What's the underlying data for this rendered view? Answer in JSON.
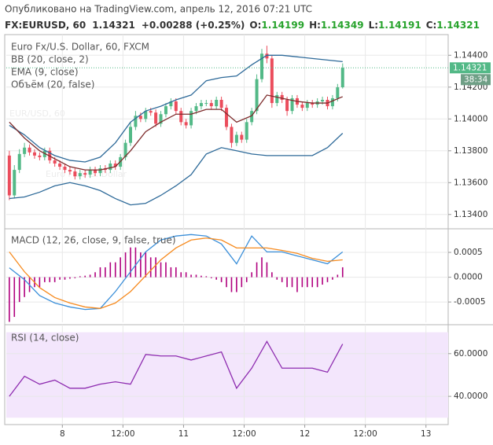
{
  "header": {
    "published": "Опубликовано на TradingView.com, апрель 12, 2016 07:21 UTC",
    "symbol": "FX:EURUSD, 60",
    "last": "1.14321",
    "change": "+0.00288 (+0.25%)",
    "open_label": "O:",
    "open": "1.14199",
    "high_label": "H:",
    "high": "1.14349",
    "low_label": "L:",
    "low": "1.14191",
    "close_label": "C:",
    "close": "1.14321"
  },
  "chart_data": [
    {
      "type": "candlestick",
      "title": "Euro Fx/U.S. Dollar, 60, FXCM",
      "watermark": {
        "symbol": "EUR/USD, 60",
        "description": "Euro Fx/U.S. Dollar"
      },
      "volume_label": "Объём (20, false)",
      "ylim": [
        1.13315,
        1.1452
      ],
      "yticks": [
        {
          "value": 1.134,
          "label": "1.13400"
        },
        {
          "value": 1.136,
          "label": "1.13600"
        },
        {
          "value": 1.138,
          "label": "1.13800"
        },
        {
          "value": 1.14,
          "label": "1.14000"
        },
        {
          "value": 1.142,
          "label": "1.14200"
        },
        {
          "value": 1.144,
          "label": "1.14400"
        }
      ],
      "last_price": 1.14321,
      "last_price_color": "#53b987",
      "countdown": "38:34",
      "series": [
        {
          "type": "candlestick",
          "up_color": "#53b987",
          "down_color": "#eb4d5c",
          "x": [
            0,
            1,
            2,
            3,
            4,
            5,
            6,
            7,
            8,
            9,
            10,
            11,
            12,
            13,
            14,
            15,
            16,
            17,
            18,
            19,
            20,
            21,
            22,
            23,
            24,
            25,
            26,
            27,
            28,
            29,
            30,
            31,
            32,
            33,
            34,
            35,
            36,
            37,
            38,
            39,
            40,
            41,
            42,
            43,
            44,
            45,
            46,
            47,
            48,
            49,
            50,
            51,
            52,
            53,
            54,
            55,
            56,
            57,
            58,
            59,
            60,
            61,
            62,
            63,
            64,
            65,
            66
          ],
          "open": [
            1.1377,
            1.1352,
            1.1368,
            1.1378,
            1.1382,
            1.1379,
            1.1377,
            1.1376,
            1.138,
            1.1374,
            1.1372,
            1.137,
            1.1368,
            1.1367,
            1.1364,
            1.1366,
            1.1365,
            1.1368,
            1.1366,
            1.1369,
            1.1368,
            1.1372,
            1.137,
            1.1376,
            1.1385,
            1.1395,
            1.1402,
            1.14,
            1.1405,
            1.1404,
            1.1397,
            1.1403,
            1.1408,
            1.1411,
            1.1405,
            1.1398,
            1.1396,
            1.1405,
            1.1408,
            1.141,
            1.141,
            1.1408,
            1.1412,
            1.1407,
            1.1395,
            1.1385,
            1.139,
            1.1387,
            1.1398,
            1.1405,
            1.1425,
            1.1441,
            1.1438,
            1.141,
            1.1415,
            1.1412,
            1.1405,
            1.1413,
            1.1409,
            1.1407,
            1.141,
            1.1409,
            1.1411,
            1.1412,
            1.1408,
            1.1413,
            1.14199
          ],
          "high": [
            1.138,
            1.1371,
            1.1381,
            1.1385,
            1.1384,
            1.1381,
            1.1379,
            1.1382,
            1.1382,
            1.1376,
            1.1374,
            1.1372,
            1.137,
            1.1369,
            1.1368,
            1.1368,
            1.137,
            1.137,
            1.1371,
            1.1371,
            1.1374,
            1.1374,
            1.1378,
            1.1387,
            1.1398,
            1.1405,
            1.1404,
            1.1407,
            1.1407,
            1.1406,
            1.1405,
            1.141,
            1.1413,
            1.1413,
            1.1407,
            1.14,
            1.1407,
            1.141,
            1.1412,
            1.1412,
            1.1412,
            1.1414,
            1.1414,
            1.1409,
            1.1397,
            1.1392,
            1.1392,
            1.14,
            1.1407,
            1.1428,
            1.1444,
            1.1446,
            1.144,
            1.1417,
            1.1417,
            1.1414,
            1.1415,
            1.1415,
            1.1411,
            1.1412,
            1.1412,
            1.1413,
            1.1414,
            1.1414,
            1.1415,
            1.1422,
            1.14349
          ],
          "low": [
            1.1349,
            1.135,
            1.1366,
            1.1376,
            1.1377,
            1.1375,
            1.1374,
            1.1374,
            1.1372,
            1.137,
            1.1368,
            1.1366,
            1.1365,
            1.1362,
            1.1362,
            1.1363,
            1.1363,
            1.1364,
            1.1364,
            1.1366,
            1.1366,
            1.1368,
            1.1368,
            1.1374,
            1.1383,
            1.1393,
            1.1398,
            1.1398,
            1.1402,
            1.1395,
            1.1395,
            1.1401,
            1.1406,
            1.1403,
            1.1396,
            1.1394,
            1.1394,
            1.1403,
            1.1406,
            1.1408,
            1.1406,
            1.1406,
            1.1405,
            1.1393,
            1.1382,
            1.1383,
            1.1385,
            1.1385,
            1.1396,
            1.1403,
            1.1423,
            1.1435,
            1.1407,
            1.1408,
            1.141,
            1.1402,
            1.1403,
            1.1407,
            1.1405,
            1.1405,
            1.1407,
            1.1407,
            1.1409,
            1.1406,
            1.1406,
            1.1411,
            1.14191
          ],
          "close": [
            1.1352,
            1.1368,
            1.1378,
            1.1382,
            1.1379,
            1.1377,
            1.1376,
            1.138,
            1.1374,
            1.1372,
            1.137,
            1.1368,
            1.1367,
            1.1364,
            1.1366,
            1.1365,
            1.1368,
            1.1366,
            1.1369,
            1.1368,
            1.1372,
            1.137,
            1.1376,
            1.1385,
            1.1395,
            1.1402,
            1.14,
            1.1405,
            1.1404,
            1.1397,
            1.1403,
            1.1408,
            1.1411,
            1.1405,
            1.1398,
            1.1396,
            1.1405,
            1.1408,
            1.141,
            1.141,
            1.1408,
            1.1412,
            1.1407,
            1.1395,
            1.1385,
            1.139,
            1.1387,
            1.1398,
            1.1405,
            1.1425,
            1.1441,
            1.1438,
            1.141,
            1.1415,
            1.1412,
            1.1405,
            1.1413,
            1.1409,
            1.1407,
            1.141,
            1.1409,
            1.1411,
            1.1412,
            1.1408,
            1.1413,
            1.14199,
            1.14321
          ]
        },
        {
          "type": "band",
          "name": "BB (20, close, 2)",
          "color": "#2e6a99",
          "x": [
            0,
            3,
            6,
            9,
            12,
            15,
            18,
            21,
            24,
            27,
            30,
            33,
            36,
            39,
            42,
            45,
            48,
            51,
            54,
            57,
            60,
            63,
            66
          ],
          "upper": [
            1.1396,
            1.139,
            1.1382,
            1.1377,
            1.1374,
            1.1373,
            1.1376,
            1.1385,
            1.1398,
            1.1405,
            1.1408,
            1.1412,
            1.1415,
            1.1424,
            1.1426,
            1.1427,
            1.1434,
            1.144,
            1.144,
            1.1439,
            1.1438,
            1.1437,
            1.1436
          ],
          "lower": [
            1.135,
            1.1351,
            1.1354,
            1.1358,
            1.136,
            1.1358,
            1.1355,
            1.135,
            1.1346,
            1.1347,
            1.1352,
            1.1358,
            1.1365,
            1.1378,
            1.1382,
            1.138,
            1.1378,
            1.1377,
            1.1377,
            1.1377,
            1.1377,
            1.1382,
            1.1391
          ]
        },
        {
          "type": "line",
          "name": "EMA (9, close)",
          "color": "#7d2b2b",
          "x": [
            0,
            3,
            6,
            9,
            12,
            15,
            18,
            21,
            24,
            27,
            30,
            33,
            36,
            39,
            42,
            45,
            48,
            51,
            54,
            57,
            60,
            63,
            66
          ],
          "values": [
            1.1398,
            1.1388,
            1.138,
            1.1375,
            1.137,
            1.1368,
            1.1368,
            1.137,
            1.138,
            1.1392,
            1.1398,
            1.1403,
            1.1403,
            1.1406,
            1.1406,
            1.1398,
            1.1402,
            1.1415,
            1.1413,
            1.1411,
            1.141,
            1.141,
            1.1414
          ]
        }
      ]
    },
    {
      "type": "combo",
      "title": "MACD (12, 26, close, 9, false, true)",
      "ylim": [
        -0.00091,
        0.00096
      ],
      "yticks": [
        {
          "value": -0.0005,
          "label": "-0.0005"
        },
        {
          "value": 0,
          "label": "0.0000"
        },
        {
          "value": 0.0005,
          "label": "0.0005"
        }
      ],
      "series": [
        {
          "type": "histogram",
          "color": "#b0007e",
          "x": [
            0,
            1,
            2,
            3,
            4,
            5,
            6,
            7,
            8,
            9,
            10,
            11,
            12,
            13,
            14,
            15,
            16,
            17,
            18,
            19,
            20,
            21,
            22,
            23,
            24,
            25,
            26,
            27,
            28,
            29,
            30,
            31,
            32,
            33,
            34,
            35,
            36,
            37,
            38,
            39,
            40,
            41,
            42,
            43,
            44,
            45,
            46,
            47,
            48,
            49,
            50,
            51,
            52,
            53,
            54,
            55,
            56,
            57,
            58,
            59,
            60,
            61,
            62,
            63,
            64,
            65,
            66
          ],
          "values": [
            -0.0009,
            -0.0008,
            -0.0005,
            -0.0004,
            -0.0003,
            -0.0002,
            -0.0002,
            -0.0001,
            -0.0001,
            -0.0001,
            -5e-05,
            -5e-05,
            -3e-05,
            -2e-05,
            2e-05,
            3e-05,
            5e-05,
            0.0001,
            0.0002,
            0.0002,
            0.0003,
            0.0003,
            0.0004,
            0.0005,
            0.0006,
            0.0006,
            0.0005,
            0.0005,
            0.0004,
            0.0004,
            0.0003,
            0.0003,
            0.0002,
            0.0002,
            0.0001,
            0.0001,
            5e-05,
            5e-05,
            3e-05,
            2e-05,
            -2e-05,
            -5e-05,
            -0.0001,
            -0.0002,
            -0.0003,
            -0.0003,
            -0.0002,
            -0.0001,
            0.0001,
            0.0003,
            0.0004,
            0.0003,
            0.0001,
            -5e-05,
            -0.0001,
            -0.0002,
            -0.0002,
            -0.0003,
            -0.0002,
            -0.0002,
            -0.0002,
            -0.0002,
            -0.00015,
            -0.0001,
            -5e-05,
            5e-05,
            0.0002
          ]
        },
        {
          "type": "line",
          "color": "#3b8fd9",
          "x": [
            0,
            3,
            6,
            9,
            12,
            15,
            18,
            21,
            24,
            27,
            30,
            33,
            36,
            39,
            42,
            45,
            48,
            51,
            54,
            57,
            60,
            63,
            66
          ],
          "values": [
            0.00019,
            -5e-05,
            -0.00037,
            -0.00052,
            -0.0006,
            -0.00065,
            -0.00063,
            -0.00029,
            0.00011,
            0.00051,
            0.00075,
            0.00083,
            0.00086,
            0.00083,
            0.00067,
            0.00027,
            0.00083,
            0.00051,
            0.00051,
            0.00043,
            0.00035,
            0.00027,
            0.00051
          ]
        },
        {
          "type": "line",
          "color": "#f68a1e",
          "x": [
            0,
            3,
            6,
            9,
            12,
            15,
            18,
            21,
            24,
            27,
            30,
            33,
            36,
            39,
            42,
            45,
            48,
            51,
            54,
            57,
            60,
            63,
            66
          ],
          "values": [
            0.00051,
            0.00011,
            -0.00021,
            -0.00041,
            -0.00052,
            -0.0006,
            -0.00063,
            -0.00052,
            -0.00029,
            3e-05,
            0.00035,
            0.00059,
            0.00075,
            0.00079,
            0.00075,
            0.00059,
            0.00059,
            0.00059,
            0.00054,
            0.00048,
            0.00038,
            0.00032,
            0.00035
          ]
        }
      ]
    },
    {
      "type": "line",
      "title": "RSI (14, close)",
      "ylim": [
        26.8,
        72.8
      ],
      "yticks": [
        {
          "value": 40,
          "label": "40.0000"
        },
        {
          "value": 60,
          "label": "60.0000"
        }
      ],
      "band": [
        30,
        70
      ],
      "band_color": "#f3e6fc",
      "xlim": [
        -0.6,
        86.9
      ],
      "xticks": [
        {
          "value": 10.5,
          "label": "8"
        },
        {
          "value": 22.5,
          "label": "12:00"
        },
        {
          "value": 34.5,
          "label": "11"
        },
        {
          "value": 46.5,
          "label": "12:00"
        },
        {
          "value": 58.5,
          "label": "12"
        },
        {
          "value": 70.5,
          "label": "12:00"
        },
        {
          "value": 82.5,
          "label": "13"
        }
      ],
      "series": [
        {
          "type": "line",
          "color": "#8e2db0",
          "x": [
            0,
            3,
            6,
            9,
            12,
            15,
            18,
            21,
            24,
            27,
            30,
            33,
            36,
            39,
            42,
            45,
            48,
            51,
            54,
            57,
            60,
            63,
            66
          ],
          "values": [
            40.0,
            49.4,
            45.7,
            47.6,
            43.8,
            43.8,
            45.7,
            46.8,
            45.7,
            59.6,
            58.9,
            58.9,
            57.0,
            58.9,
            60.8,
            43.8,
            53.2,
            65.7,
            53.2,
            53.2,
            53.2,
            51.3,
            64.5
          ]
        }
      ]
    }
  ]
}
